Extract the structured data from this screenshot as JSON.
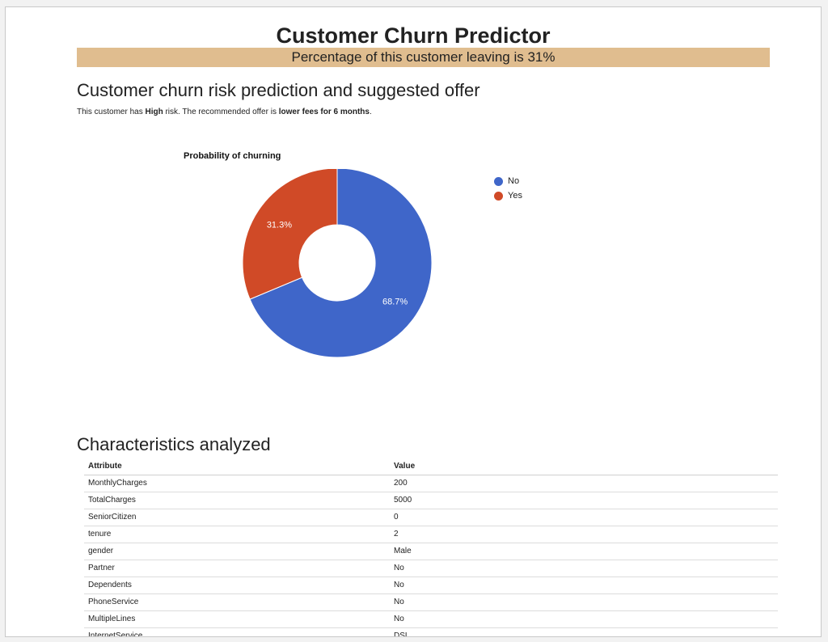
{
  "header": {
    "title": "Customer Churn Predictor",
    "banner_text": "Percentage of this customer leaving is 31%"
  },
  "prediction": {
    "heading": "Customer churn risk prediction and suggested offer",
    "risk_prefix": "This customer has ",
    "risk_level": "High",
    "risk_mid": " risk. The recommended offer is ",
    "offer": "lower fees for 6 months",
    "risk_suffix": "."
  },
  "chart_data": {
    "type": "pie",
    "title": "Probability of churning",
    "categories": [
      "No",
      "Yes"
    ],
    "values": [
      68.7,
      31.3
    ],
    "value_labels": [
      "68.7%",
      "31.3%"
    ],
    "colors": [
      "#3f66c9",
      "#d04a27"
    ],
    "donut": true,
    "legend_position": "right"
  },
  "characteristics": {
    "heading": "Characteristics analyzed",
    "columns": [
      "Attribute",
      "Value"
    ],
    "rows": [
      [
        "MonthlyCharges",
        "200"
      ],
      [
        "TotalCharges",
        "5000"
      ],
      [
        "SeniorCitizen",
        "0"
      ],
      [
        "tenure",
        "2"
      ],
      [
        "gender",
        "Male"
      ],
      [
        "Partner",
        "No"
      ],
      [
        "Dependents",
        "No"
      ],
      [
        "PhoneService",
        "No"
      ],
      [
        "MultipleLines",
        "No"
      ],
      [
        "InternetService",
        "DSL"
      ]
    ]
  }
}
